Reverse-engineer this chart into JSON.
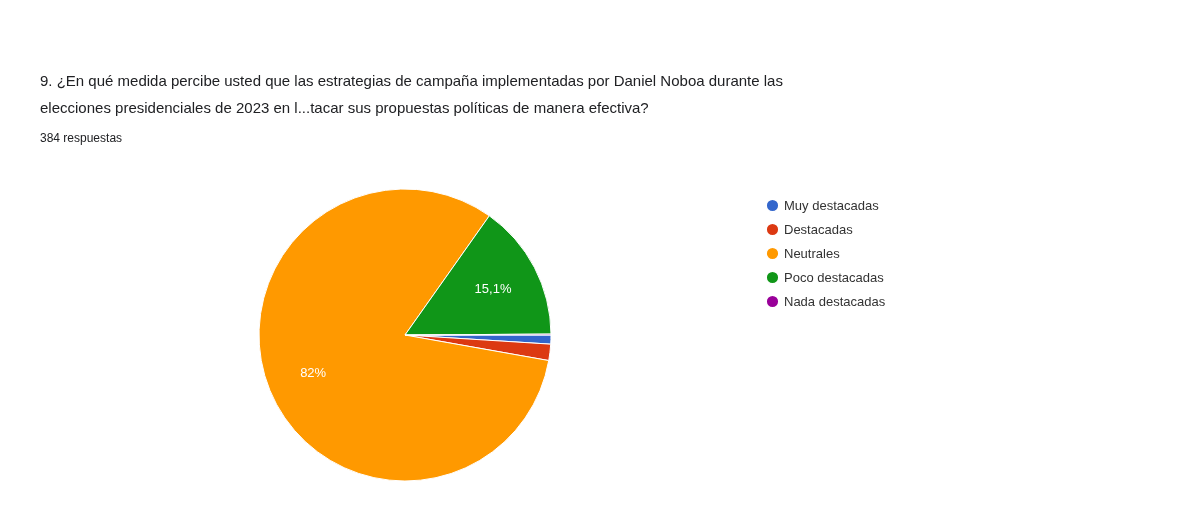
{
  "chart_data": {
    "type": "pie",
    "title": "9. ¿En qué medida percibe usted que las estrategias de campaña implementadas por Daniel Noboa durante las elecciones presidenciales de 2023 en l...tacar sus propuestas políticas de manera efectiva?",
    "subtitle": "384 respuestas",
    "categories": [
      "Muy destacadas",
      "Destacadas",
      "Neutrales",
      "Poco destacadas",
      "Nada destacadas"
    ],
    "values": [
      1.0,
      1.8,
      82,
      15.1,
      0.1
    ],
    "colors": [
      "#3366cc",
      "#dc3912",
      "#ff9900",
      "#109618",
      "#990099"
    ],
    "value_labels": [
      null,
      null,
      "82%",
      "15,1%",
      null
    ],
    "legend": "right"
  }
}
